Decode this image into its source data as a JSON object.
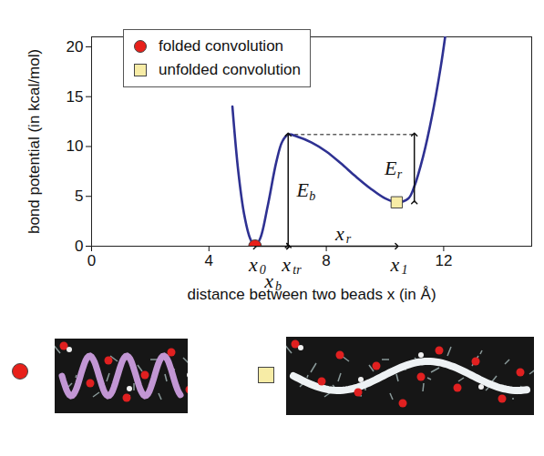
{
  "chart_data": {
    "type": "line",
    "xlabel": "distance between two beads x (in Å)",
    "ylabel": "bond potential (in kcal/mol)",
    "color": "#2e3192",
    "x": [
      4.8,
      5.0,
      5.2,
      5.4,
      5.57,
      5.75,
      6.0,
      6.3,
      6.5,
      6.7,
      7.0,
      7.5,
      8.0,
      8.5,
      9.0,
      9.5,
      10.0,
      10.4,
      10.8,
      11.0,
      11.3,
      11.6,
      11.9,
      12.05
    ],
    "values": [
      14,
      7.5,
      3.2,
      0.8,
      0,
      0.8,
      4,
      8.5,
      10.5,
      11.2,
      11.0,
      10.4,
      9.5,
      8.3,
      7,
      5.8,
      4.8,
      4.4,
      4.8,
      6,
      9,
      13,
      18,
      21
    ],
    "xlim": [
      0,
      15
    ],
    "ylim": [
      0,
      21
    ],
    "xticks": [
      0,
      4,
      8,
      12
    ],
    "yticks": [
      0,
      5,
      10,
      15,
      20
    ],
    "grid": false,
    "legend": "top-left",
    "markers": [
      {
        "name": "folded convolution",
        "x": 5.57,
        "y": 0,
        "color": "#e8201a",
        "marker": "circle"
      },
      {
        "name": "unfolded convolution",
        "x": 10.4,
        "y": 4.4,
        "color": "#f7eca6",
        "marker": "square"
      }
    ],
    "positions": [
      {
        "symbol": "x",
        "subscript": "0",
        "value": 5.57
      },
      {
        "symbol": "x",
        "subscript": "tr",
        "value": 6.7
      },
      {
        "symbol": "x",
        "subscript": "1",
        "value": 10.4
      }
    ],
    "distances": [
      {
        "symbol": "x",
        "subscript": "b",
        "from": 5.57,
        "to": 6.7
      },
      {
        "symbol": "x",
        "subscript": "r",
        "from": 6.7,
        "to": 10.4
      }
    ],
    "energies": [
      {
        "symbol": "E",
        "subscript": "b",
        "x": 6.7,
        "from": 0,
        "to": 11.2
      },
      {
        "symbol": "E",
        "subscript": "r",
        "x": 11.0,
        "from": 4.4,
        "to": 11.2
      }
    ]
  }
}
